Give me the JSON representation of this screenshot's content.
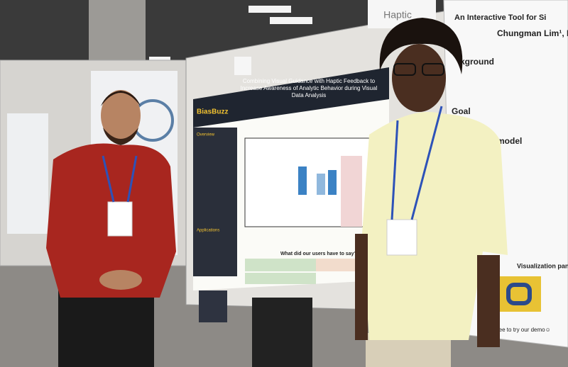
{
  "photo": {
    "sign": "Haptic",
    "main_poster": {
      "brand": "BiasBuzz",
      "title": "Combining Visual Guidance with Haptic Feedback to Increase Awareness of Analytic Behavior during Visual Data Analysis",
      "overview": "Overview",
      "applications": "Applications",
      "question": "What did our users have to say?"
    },
    "right_poster": {
      "title": "An Interactive Tool for Si",
      "authors": "Chungman Lim¹, H",
      "background": "kground",
      "goal": "Goal",
      "model": "model",
      "visualization": "Visualization panel",
      "demo": "Feel free to try our demo☺"
    }
  }
}
